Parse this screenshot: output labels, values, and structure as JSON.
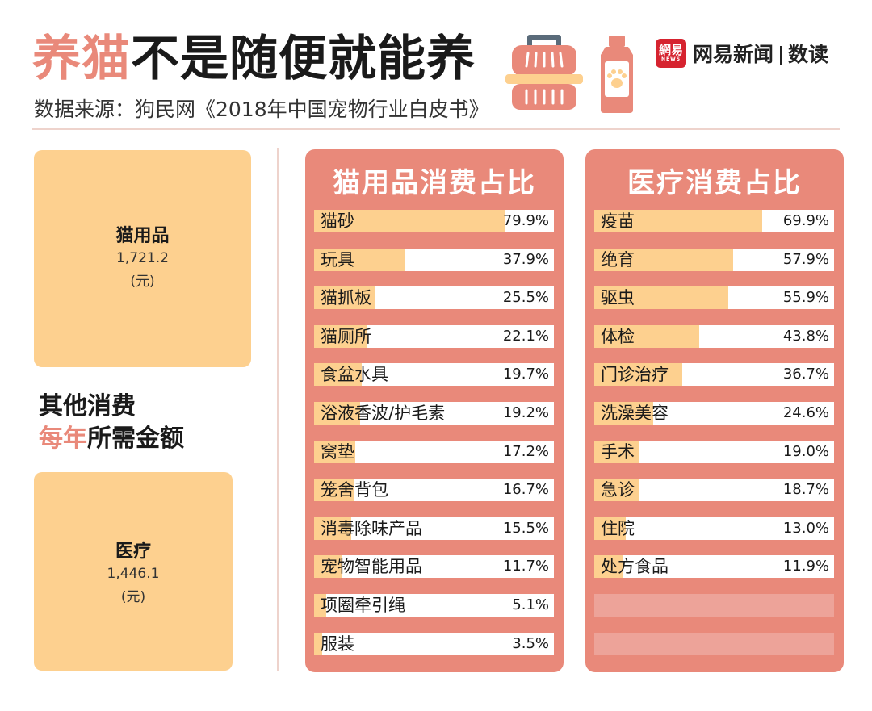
{
  "header": {
    "title_highlight": "养猫",
    "title_rest": "不是随便就能养",
    "subtitle": "数据来源：狗民网《2018年中国宠物行业白皮书》"
  },
  "icons": [
    "pet-carrier-icon",
    "shampoo-bottle-icon",
    "paw-icon"
  ],
  "logo": {
    "badge": "網易",
    "badge_sub": "NEWS",
    "name": "网易新闻",
    "column": "数读"
  },
  "colors": {
    "accent": "#e9897a",
    "bar": "#fdd08f",
    "logo_red": "#d6232f"
  },
  "summary": {
    "supplies": {
      "label": "猫用品",
      "value": "1,721.2",
      "unit": "(元)"
    },
    "middle_line1": "其他消费",
    "middle_highlight": "每年",
    "middle_rest": "所需金额",
    "medical": {
      "label": "医疗",
      "value": "1,446.1",
      "unit": "(元)"
    }
  },
  "chart_data": [
    {
      "type": "bar",
      "title": "猫用品消费占比",
      "categories": [
        "猫砂",
        "玩具",
        "猫抓板",
        "猫厕所",
        "食盆水具",
        "浴液香波/护毛素",
        "窝垫",
        "笼舍背包",
        "消毒除味产品",
        "宠物智能用品",
        "项圈牵引绳",
        "服装"
      ],
      "values": [
        79.9,
        37.9,
        25.5,
        22.1,
        19.7,
        19.2,
        17.2,
        16.7,
        15.5,
        11.7,
        5.1,
        3.5
      ],
      "labels": [
        "79.9%",
        "37.9%",
        "25.5%",
        "22.1%",
        "19.7%",
        "19.2%",
        "17.2%",
        "16.7%",
        "15.5%",
        "11.7%",
        "5.1%",
        "3.5%"
      ],
      "xlim": [
        0,
        100
      ],
      "orientation": "horizontal"
    },
    {
      "type": "bar",
      "title": "医疗消费占比",
      "categories": [
        "疫苗",
        "绝育",
        "驱虫",
        "体检",
        "门诊治疗",
        "洗澡美容",
        "手术",
        "急诊",
        "住院",
        "处方食品"
      ],
      "values": [
        69.9,
        57.9,
        55.9,
        43.8,
        36.7,
        24.6,
        19.0,
        18.7,
        13.0,
        11.9
      ],
      "labels": [
        "69.9%",
        "57.9%",
        "55.9%",
        "43.8%",
        "36.7%",
        "24.6%",
        "19.0%",
        "18.7%",
        "13.0%",
        "11.9%"
      ],
      "xlim": [
        0,
        100
      ],
      "orientation": "horizontal"
    }
  ]
}
